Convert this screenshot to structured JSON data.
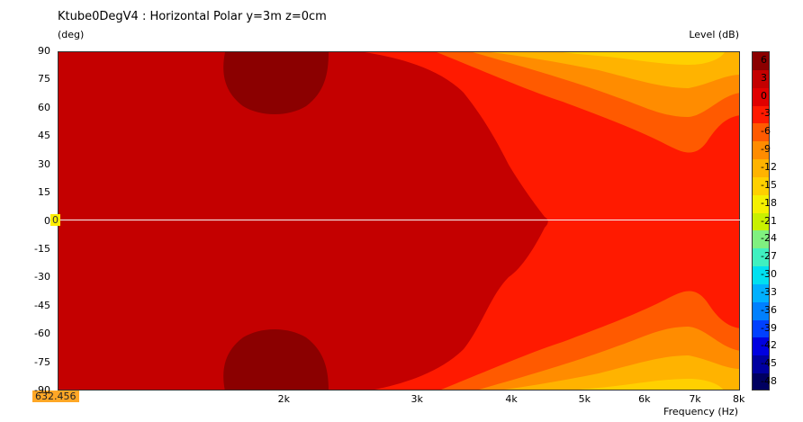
{
  "chart_data": {
    "type": "heatmap",
    "title": "Ktube0DegV4 : Horizontal Polar y=3m z=0cm",
    "ylabel": "(deg)",
    "xlabel": "Frequency  (Hz)",
    "colorbar_label": "Level  (dB)",
    "x_scale": "log",
    "xlim": [
      1000,
      8000
    ],
    "ylim": [
      -90,
      90
    ],
    "y_ticks": [
      "90",
      "75",
      "60",
      "45",
      "30",
      "15",
      "0",
      "-15",
      "-30",
      "-45",
      "-60",
      "-75",
      "-90"
    ],
    "x_ticks": [
      {
        "label": "2k",
        "value": 2000
      },
      {
        "label": "3k",
        "value": 3000
      },
      {
        "label": "4k",
        "value": 4000
      },
      {
        "label": "5k",
        "value": 5000
      },
      {
        "label": "6k",
        "value": 6000
      },
      {
        "label": "7k",
        "value": 7000
      },
      {
        "label": "8k",
        "value": 8000
      }
    ],
    "colorbar": {
      "labels": [
        "6",
        "3",
        "0",
        "-3",
        "-6",
        "-9",
        "-12",
        "-15",
        "-18",
        "-21",
        "-24",
        "-27",
        "-30",
        "-33",
        "-36",
        "-39",
        "-42",
        "-45",
        "-48"
      ],
      "colors": [
        "#8b0000",
        "#c40000",
        "#e00000",
        "#ff1a00",
        "#ff5a00",
        "#ff8c00",
        "#ffb300",
        "#ffd000",
        "#f5f000",
        "#c8f000",
        "#80f080",
        "#40f0c0",
        "#00e0f0",
        "#00b0ff",
        "#0080ff",
        "#0040ff",
        "#0000e0",
        "#0000a0",
        "#000060"
      ]
    },
    "contours": [
      {
        "level_db": 0,
        "color": "#ff1a00",
        "shape": "beyond ~2.7k at edges, beyond ~4.4k on axis"
      },
      {
        "level_db": -3,
        "color": "#ff5a00",
        "shape": "wide angles above ~3.5k"
      },
      {
        "level_db": -6,
        "color": "#ff8c00",
        "shape": "wide angles above ~3.8k"
      },
      {
        "level_db": -9,
        "color": "#ffb300",
        "shape": "±65–90 deg above ~4.5k"
      },
      {
        "level_db": -12,
        "color": "#ffd000",
        "shape": "±80–90 deg near 5.5–7k"
      },
      {
        "level_db": 3,
        "color": "#8b0000",
        "shape": "lobes near ±75 deg around 2k"
      }
    ],
    "cursor": {
      "y_value": "0",
      "freq_readout": "632.456"
    }
  }
}
